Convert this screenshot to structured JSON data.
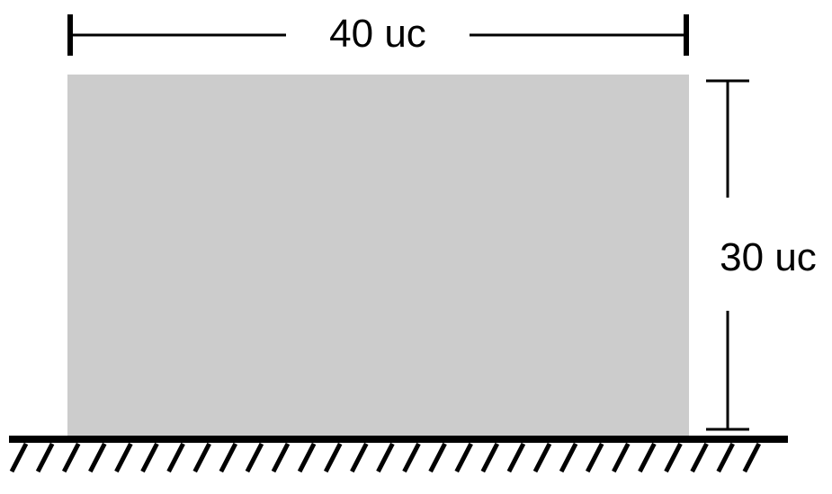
{
  "dimensions": {
    "width_label": "40 uc",
    "height_label": "30 uc"
  },
  "colors": {
    "block_fill": "#cccccc",
    "line": "#000000",
    "background": "#ffffff"
  }
}
